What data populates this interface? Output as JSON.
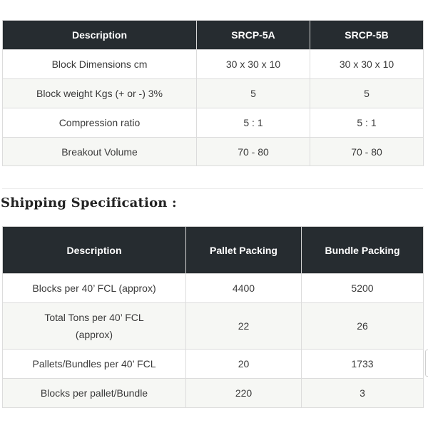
{
  "tech_table": {
    "headers": [
      "Description",
      "SRCP-5A",
      "SRCP-5B"
    ],
    "rows": [
      [
        "Block Dimensions cm",
        "30 x 30 x 10",
        "30 x 30 x 10"
      ],
      [
        "Block weight Kgs (+ or -) 3%",
        "5",
        "5"
      ],
      [
        "Compression ratio",
        "5 : 1",
        "5 : 1"
      ],
      [
        "Breakout Volume",
        "70 - 80",
        "70 - 80"
      ]
    ]
  },
  "shipping": {
    "title": "Shipping Specification :",
    "headers": [
      "Description",
      "Pallet Packing",
      "Bundle Packing"
    ],
    "rows": [
      [
        "Blocks per 40’ FCL (approx)",
        "4400",
        "5200"
      ],
      [
        "Total Tons per 40’ FCL (approx)",
        "22",
        "26"
      ],
      [
        "Pallets/Bundles per 40’ FCL",
        "20",
        "1733"
      ],
      [
        "Blocks per pallet/Bundle",
        "220",
        "3"
      ]
    ]
  }
}
